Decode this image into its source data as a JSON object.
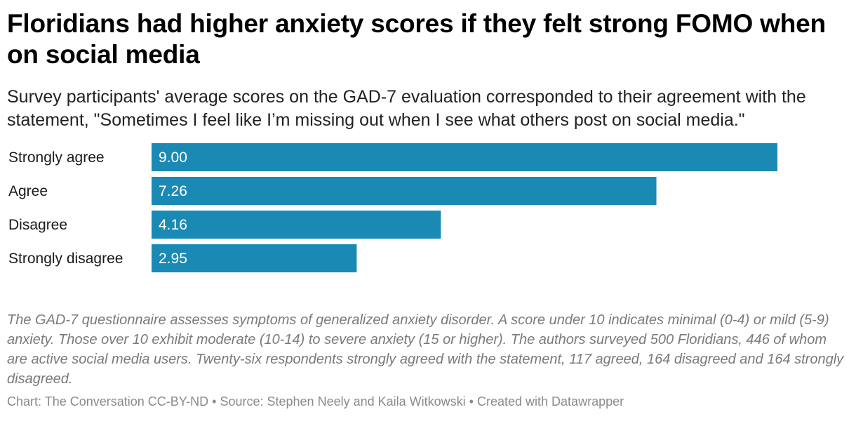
{
  "header": {
    "title": "Floridians had higher anxiety scores if they felt strong FOMO when on social media",
    "subtitle": "Survey participants' average scores on the GAD-7 evaluation corresponded to their agreement with the statement, \"Sometimes I feel like I’m missing out when I see what others post on social media.\""
  },
  "chart_data": {
    "type": "bar",
    "orientation": "horizontal",
    "categories": [
      "Strongly agree",
      "Agree",
      "Disagree",
      "Strongly disagree"
    ],
    "values": [
      9.0,
      7.26,
      4.16,
      2.95
    ],
    "value_labels": [
      "9.00",
      "7.26",
      "4.16",
      "2.95"
    ],
    "title": "Floridians had higher anxiety scores if they felt strong FOMO when on social media",
    "xlabel": "",
    "ylabel": "",
    "xlim": [
      0,
      9
    ],
    "grid": false,
    "bar_color": "#1a8ab5",
    "label_color": "#ffffff"
  },
  "notes": "The GAD-7 questionnaire assesses symptoms of generalized anxiety disorder. A score under 10 indicates minimal (0-4) or mild (5-9) anxiety. Those over 10 exhibit moderate (10-14) to severe anxiety (15 or higher). The authors surveyed 500 Floridians, 446 of whom are active social media users. Twenty-six respondents strongly agreed with the statement, 117 agreed, 164 disagreed and 164 strongly disagreed.",
  "footer": {
    "chart_credit": "Chart: The Conversation CC-BY-ND",
    "source": "Source: Stephen Neely and Kaila Witkowski",
    "tool": "Created with Datawrapper",
    "separator": "•"
  }
}
